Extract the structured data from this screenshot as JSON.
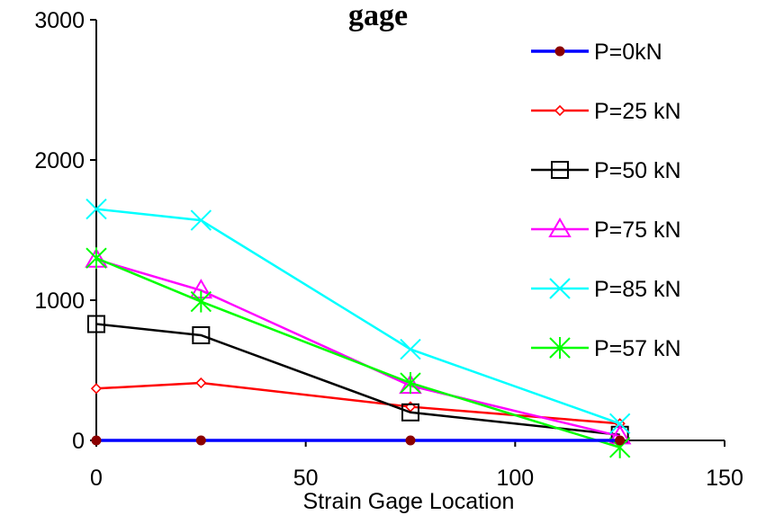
{
  "chart_data": {
    "type": "line",
    "title": "gage",
    "xlabel": "Strain Gage Location",
    "ylabel": "",
    "xlim": [
      0,
      150
    ],
    "ylim": [
      0,
      3000
    ],
    "x_ticks": [
      0,
      50,
      100,
      150
    ],
    "y_ticks": [
      0,
      1000,
      2000,
      3000
    ],
    "x_tick_labels": [
      "0",
      "50",
      "100",
      "150"
    ],
    "y_tick_labels": [
      "0",
      "1000",
      "2000",
      "3000"
    ],
    "grid": false,
    "legend_position": "top-right",
    "x": [
      0,
      25,
      75,
      125
    ],
    "series": [
      {
        "name": "P=0kN",
        "color": "#0000FF",
        "marker": "circle",
        "marker_color": "#8B0000",
        "values": [
          0,
          0,
          0,
          0
        ]
      },
      {
        "name": "P=25 kN",
        "color": "#FF0000",
        "marker": "diamond",
        "marker_color": "#FF0000",
        "values": [
          370,
          410,
          240,
          120
        ]
      },
      {
        "name": "P=50 kN",
        "color": "#000000",
        "marker": "square",
        "marker_color": "#000000",
        "values": [
          830,
          750,
          200,
          40
        ]
      },
      {
        "name": "P=75 kN",
        "color": "#FF00FF",
        "marker": "triangle",
        "marker_color": "#FF00FF",
        "values": [
          1290,
          1070,
          390,
          30
        ]
      },
      {
        "name": "P=85 kN",
        "color": "#00FFFF",
        "marker": "x",
        "marker_color": "#00FFFF",
        "values": [
          1650,
          1570,
          650,
          120
        ]
      },
      {
        "name": "P=57 kN",
        "color": "#00FF00",
        "marker": "star",
        "marker_color": "#00FF00",
        "values": [
          1300,
          990,
          410,
          -50
        ]
      }
    ]
  }
}
